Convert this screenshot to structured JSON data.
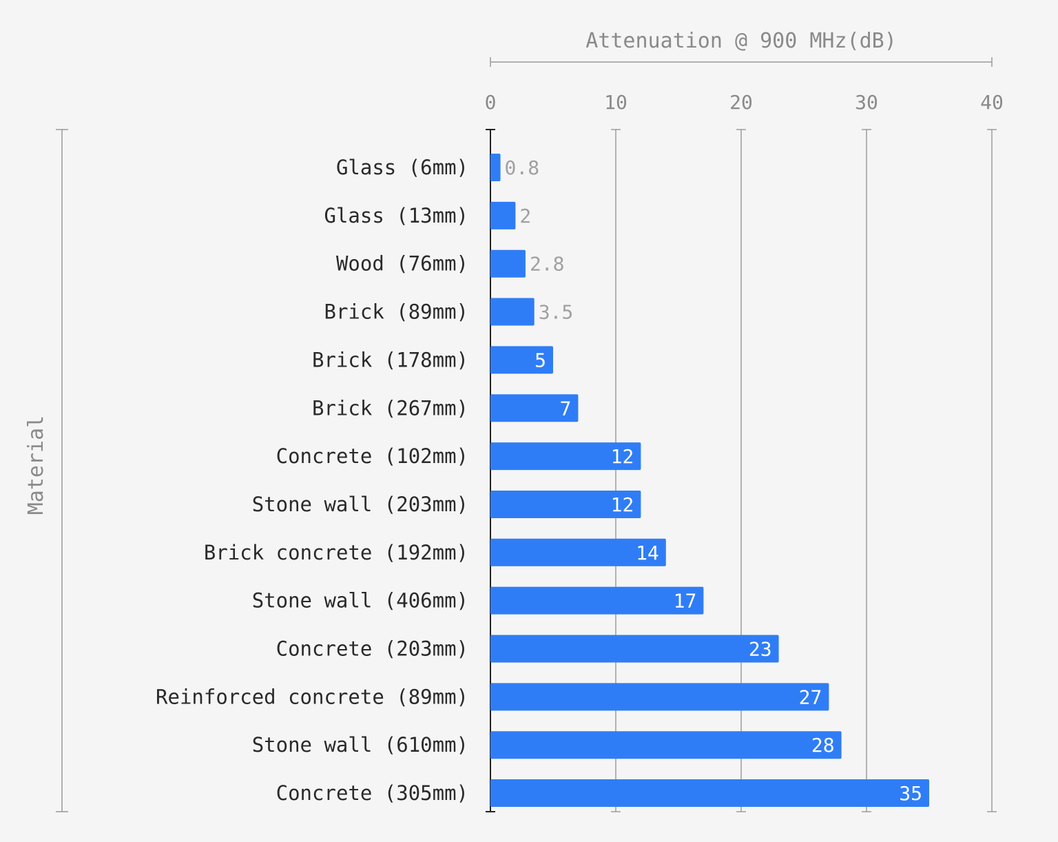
{
  "chart_data": {
    "type": "bar",
    "orientation": "horizontal",
    "xlabel": "Attenuation @ 900 MHz(dB)",
    "ylabel": "Material",
    "xlim": [
      0,
      40
    ],
    "xticks": [
      0,
      10,
      20,
      30,
      40
    ],
    "xtick_labels": [
      "0",
      "10",
      "20",
      "30",
      "40"
    ],
    "x_axis_position": "top",
    "grid": true,
    "legend": "none",
    "bar_color": "#2f7df6",
    "inside_label_color": "#ffffff",
    "outside_label_color": "#a0a0a0",
    "categories": [
      "Glass (6mm)",
      "Glass (13mm)",
      "Wood (76mm)",
      "Brick (89mm)",
      "Brick (178mm)",
      "Brick (267mm)",
      "Concrete (102mm)",
      "Stone wall (203mm)",
      "Brick concrete (192mm)",
      "Stone wall (406mm)",
      "Concrete (203mm)",
      "Reinforced concrete (89mm)",
      "Stone wall (610mm)",
      "Concrete (305mm)"
    ],
    "values": [
      0.8,
      2,
      2.8,
      3.5,
      5,
      7,
      12,
      12,
      14,
      17,
      23,
      27,
      28,
      35
    ],
    "value_labels": [
      "0.8",
      "2",
      "2.8",
      "3.5",
      "5",
      "7",
      "12",
      "12",
      "14",
      "17",
      "23",
      "27",
      "28",
      "35"
    ]
  }
}
